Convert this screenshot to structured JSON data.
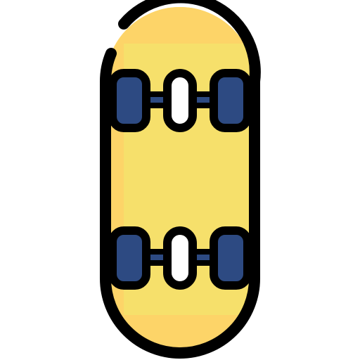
{
  "icon": {
    "name": "skateboard-icon",
    "colors": {
      "outline": "#000000",
      "deck": "#f6e06b",
      "deck_shade": "#fdd468",
      "wheel": "#2d4a82",
      "wheel_shade": "#22396a",
      "axle": "#2d4a82",
      "pivot": "#ffffff",
      "pivot_shade": "#dddfe8",
      "background": "#ffffff"
    }
  }
}
